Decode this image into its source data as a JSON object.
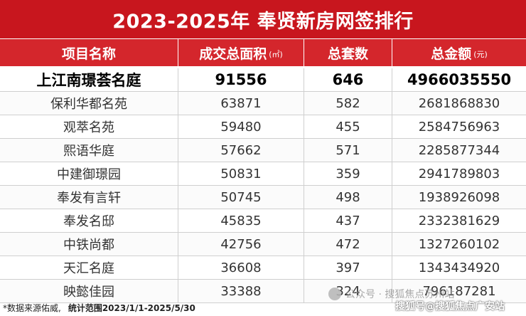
{
  "title": "2023-2025年 奉贤新房网签排行",
  "header": {
    "project": "项目名称",
    "area": "成交总面积",
    "area_unit": "(㎡)",
    "units": "总套数",
    "amount": "总金额",
    "amount_unit": "(元)"
  },
  "rows": [
    {
      "name": "上江南璟荟名庭",
      "area": "91556",
      "units": "646",
      "amount": "4966035550"
    },
    {
      "name": "保利华都名苑",
      "area": "63871",
      "units": "582",
      "amount": "2681868830"
    },
    {
      "name": "观萃名苑",
      "area": "59480",
      "units": "455",
      "amount": "2584756963"
    },
    {
      "name": "熙语华庭",
      "area": "57662",
      "units": "571",
      "amount": "2285877344"
    },
    {
      "name": "中建御璟园",
      "area": "50831",
      "units": "359",
      "amount": "2941789803"
    },
    {
      "name": "奉发有言轩",
      "area": "50745",
      "units": "498",
      "amount": "1938926098"
    },
    {
      "name": "奉发名邸",
      "area": "45835",
      "units": "437",
      "amount": "2332381629"
    },
    {
      "name": "中铁尚都",
      "area": "42756",
      "units": "472",
      "amount": "1327260102"
    },
    {
      "name": "天汇名庭",
      "area": "36608",
      "units": "397",
      "amount": "1343434920"
    },
    {
      "name": "映懿佳园",
      "area": "33388",
      "units": "324",
      "amount": "796187281"
    }
  ],
  "footer": {
    "source": "*数据来源佑威,",
    "range": "统计范围2023/1/1-2025/5/30"
  },
  "watermark": {
    "line1": "公众号 · 搜狐焦点苏州站",
    "line2": "搜狐号@搜狐焦点广安站"
  }
}
